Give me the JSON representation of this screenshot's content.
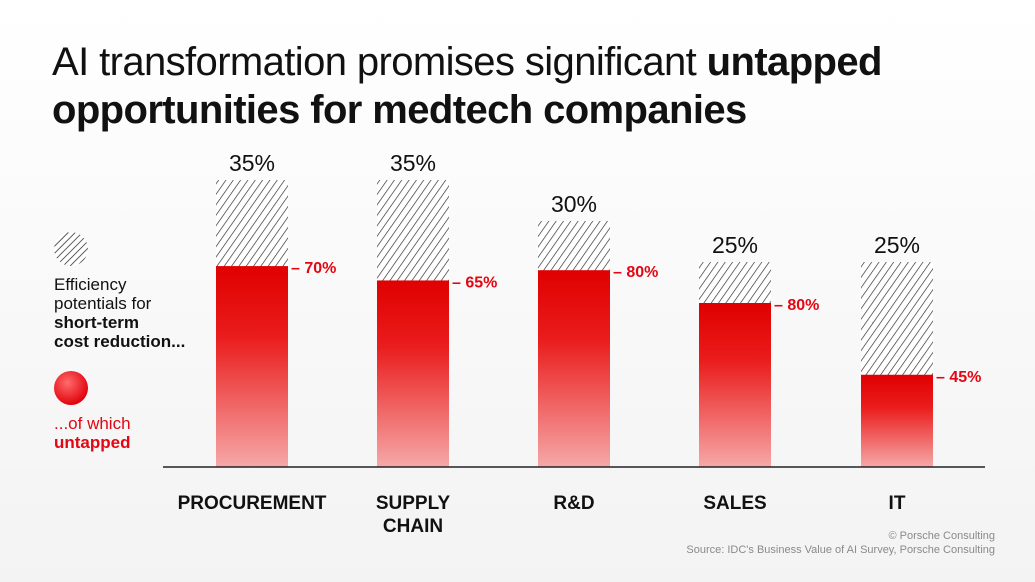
{
  "title": {
    "normal": "AI transformation promises significant ",
    "bold": "untapped opportunities for medtech companies"
  },
  "legend": {
    "hatch": {
      "line1": "Efficiency",
      "line2": "potentials for",
      "line3": "short-term",
      "line4": "cost reduction..."
    },
    "untapped": {
      "line1": "...of which",
      "line2": "untapped"
    }
  },
  "colors": {
    "accent": "#e30613",
    "hatch": "#333333",
    "axis": "#222222",
    "footer": "#8a8a8a"
  },
  "chart_data": {
    "type": "bar",
    "categories": [
      "PROCUREMENT",
      "SUPPLY CHAIN",
      "R&D",
      "SALES",
      "IT"
    ],
    "category_lines": [
      [
        "PROCUREMENT"
      ],
      [
        "SUPPLY",
        "CHAIN"
      ],
      [
        "R&D"
      ],
      [
        "SALES"
      ],
      [
        "IT"
      ]
    ],
    "series": [
      {
        "values": [
          35,
          35,
          30,
          25,
          25
        ],
        "labels": [
          "35%",
          "35%",
          "30%",
          "25%",
          "25%"
        ]
      },
      {
        "values": [
          70,
          65,
          80,
          80,
          45
        ],
        "labels": [
          "– 70%",
          "– 65%",
          "– 80%",
          "– 80%",
          "– 45%"
        ]
      }
    ],
    "ylim": [
      0,
      35
    ],
    "grid": false,
    "legend_position": "left"
  },
  "footer": {
    "copyright": "© Porsche Consulting",
    "source": "Source: IDC's Business Value of AI Survey, Porsche Consulting"
  }
}
